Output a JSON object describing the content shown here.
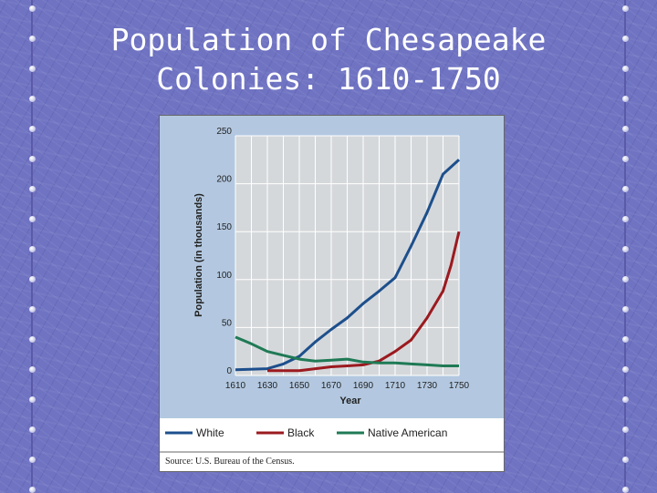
{
  "slide": {
    "title_line1": "Population of Chesapeake",
    "title_line2": "Colonies: 1610-1750"
  },
  "chart_data": {
    "type": "line",
    "xlabel": "Year",
    "ylabel": "Population (in thousands)",
    "xlim": [
      1610,
      1750
    ],
    "ylim": [
      0,
      250
    ],
    "x_ticks": [
      "1610",
      "1630",
      "1650",
      "1670",
      "1690",
      "1710",
      "1730",
      "1750"
    ],
    "y_ticks": [
      "0",
      "50",
      "100",
      "150",
      "200",
      "250"
    ],
    "grid": true,
    "legend_position": "bottom",
    "source": "Source: U.S. Bureau of the Census.",
    "colors": {
      "White": "#1d4f8c",
      "Black": "#9b1a1f",
      "Native American": "#1f7a55",
      "plot_bg": "#b3c8e0",
      "grid": "#ffffff"
    },
    "series": [
      {
        "name": "White",
        "x": [
          1610,
          1630,
          1640,
          1650,
          1660,
          1670,
          1680,
          1690,
          1700,
          1710,
          1720,
          1730,
          1740,
          1750
        ],
        "y": [
          6,
          7,
          12,
          20,
          35,
          48,
          60,
          75,
          88,
          102,
          135,
          170,
          210,
          225
        ]
      },
      {
        "name": "Black",
        "x": [
          1630,
          1650,
          1660,
          1670,
          1680,
          1690,
          1700,
          1710,
          1720,
          1730,
          1740,
          1745,
          1750
        ],
        "y": [
          5,
          5,
          7,
          9,
          10,
          11,
          15,
          25,
          37,
          60,
          88,
          115,
          150
        ]
      },
      {
        "name": "Native American",
        "x": [
          1610,
          1620,
          1630,
          1640,
          1650,
          1660,
          1670,
          1680,
          1690,
          1700,
          1710,
          1720,
          1730,
          1740,
          1750
        ],
        "y": [
          40,
          33,
          25,
          21,
          17,
          15,
          16,
          17,
          14,
          13,
          13,
          12,
          11,
          10,
          10
        ]
      }
    ]
  }
}
